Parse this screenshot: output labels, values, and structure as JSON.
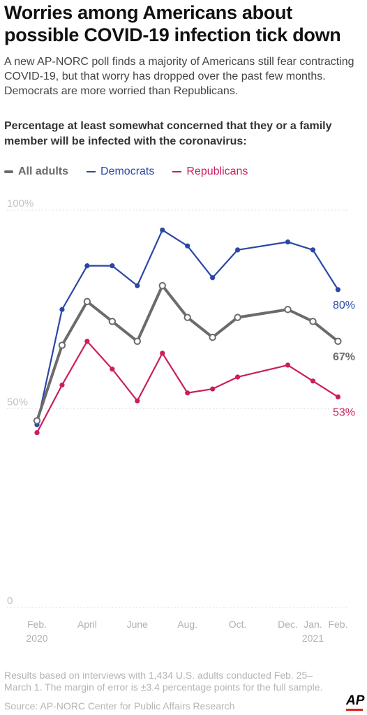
{
  "header": {
    "title": "Worries among Americans about possible COVID-19 infection tick down",
    "subtitle": "A new AP-NORC poll finds a majority of Americans still fear contracting COVID-19, but that worry has dropped over the past few months. Democrats are more worried than Republicans.",
    "question": "Percentage at least somewhat concerned that they or a family member will be infected with the coronavirus:"
  },
  "legend": {
    "adults": "All adults",
    "democrats": "Democrats",
    "republicans": "Republicans"
  },
  "footer": {
    "note": "Results based on interviews with 1,434 U.S. adults conducted Feb. 25–March 1. The margin of error is ±3.4 percentage points for the full sample.",
    "source": "Source: AP-NORC Center for Public Affairs Research",
    "logo": "AP"
  },
  "colors": {
    "adults": "#6b6b6b",
    "democrats": "#2a47a6",
    "republicans": "#cc1d5e",
    "grid": "#dcdcdc"
  },
  "chart_data": {
    "type": "line",
    "title": "Worries among Americans about possible COVID-19 infection tick down",
    "ylim": [
      0,
      100
    ],
    "y_ticks": [
      {
        "value": 100,
        "label": "100%"
      },
      {
        "value": 50,
        "label": "50%"
      },
      {
        "value": 0,
        "label": "0"
      }
    ],
    "x_range": [
      0,
      12.1
    ],
    "x_ticks": [
      {
        "x": 0,
        "label": "Feb.",
        "sublabel": "2020"
      },
      {
        "x": 2,
        "label": "April",
        "sublabel": ""
      },
      {
        "x": 4,
        "label": "June",
        "sublabel": ""
      },
      {
        "x": 6,
        "label": "Aug.",
        "sublabel": ""
      },
      {
        "x": 8,
        "label": "Oct.",
        "sublabel": ""
      },
      {
        "x": 10,
        "label": "Dec.",
        "sublabel": ""
      },
      {
        "x": 11,
        "label": "Jan.",
        "sublabel": "2021"
      },
      {
        "x": 12,
        "label": "Feb.",
        "sublabel": ""
      }
    ],
    "series": [
      {
        "name": "Democrats",
        "key": "democrats",
        "x": [
          0,
          1,
          2,
          3,
          4,
          5,
          6,
          7,
          8,
          10,
          11,
          12
        ],
        "values": [
          46,
          75,
          86,
          86,
          81,
          95,
          91,
          83,
          90,
          92,
          90,
          80
        ],
        "end_label": "80%"
      },
      {
        "name": "All adults",
        "key": "adults",
        "x": [
          0,
          1,
          2,
          3,
          4,
          5,
          6,
          7,
          8,
          10,
          11,
          12
        ],
        "values": [
          47,
          66,
          77,
          72,
          67,
          81,
          73,
          68,
          73,
          75,
          72,
          67
        ],
        "end_label": "67%"
      },
      {
        "name": "Republicans",
        "key": "republicans",
        "x": [
          0,
          1,
          2,
          3,
          4,
          5,
          6,
          7,
          8,
          10,
          11,
          12
        ],
        "values": [
          44,
          56,
          67,
          60,
          52,
          64,
          54,
          55,
          58,
          61,
          57,
          53
        ],
        "end_label": "53%"
      }
    ]
  }
}
